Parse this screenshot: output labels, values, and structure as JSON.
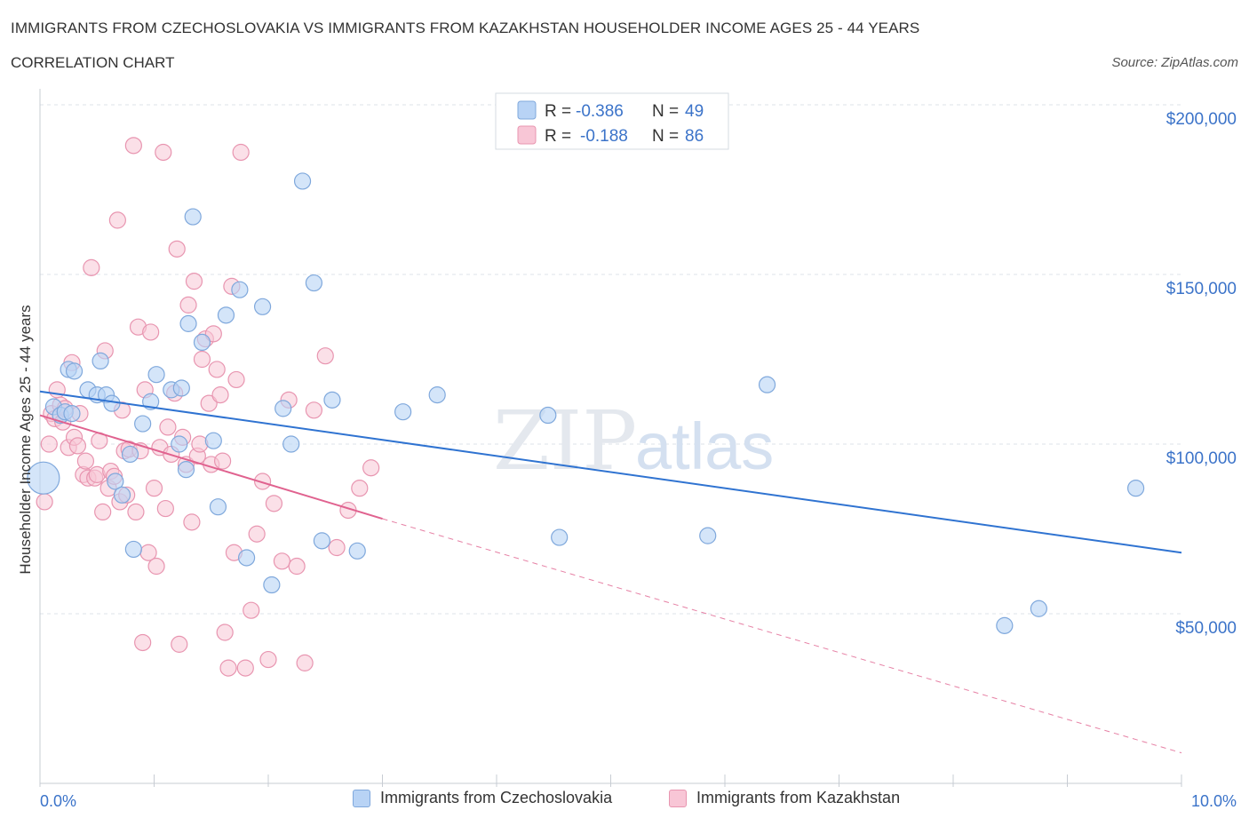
{
  "header": {
    "title": "IMMIGRANTS FROM CZECHOSLOVAKIA VS IMMIGRANTS FROM KAZAKHSTAN HOUSEHOLDER INCOME AGES 25 - 44 YEARS",
    "subtitle": "CORRELATION CHART",
    "source": "Source: ZipAtlas.com"
  },
  "watermark": {
    "zip": "ZIP",
    "atlas": "atlas"
  },
  "colors": {
    "blue_fill": "#b8d3f5",
    "blue_stroke": "#7fa8dc",
    "blue_line": "#2f73d1",
    "pink_fill": "#f8c6d6",
    "pink_stroke": "#e895b0",
    "pink_line": "#e0628f",
    "axis_label": "#3b73c9",
    "grid": "#dde3ea"
  },
  "legend_top": [
    {
      "r_label": "R = ",
      "r_value": "-0.386",
      "n_label": "N = ",
      "n_value": "49"
    },
    {
      "r_label": "R = ",
      "r_value": "-0.188",
      "n_label": "N = ",
      "n_value": "86"
    }
  ],
  "legend_bottom": [
    "Immigrants from Czechoslovakia",
    "Immigrants from Kazakhstan"
  ],
  "chart_data": {
    "type": "scatter",
    "title": "IMMIGRANTS FROM CZECHOSLOVAKIA VS IMMIGRANTS FROM KAZAKHSTAN HOUSEHOLDER INCOME AGES 25 - 44 YEARS",
    "xlabel": "",
    "ylabel": "Householder Income Ages 25 - 44 years",
    "xlim": [
      0,
      10
    ],
    "ylim": [
      0,
      200000
    ],
    "x_tick_labels": [
      "0.0%",
      "10.0%"
    ],
    "y_tick_labels": [
      "$50,000",
      "$100,000",
      "$150,000",
      "$200,000"
    ],
    "y_tick_values": [
      50000,
      100000,
      150000,
      200000
    ],
    "grid": true,
    "legend_position": "bottom",
    "series": [
      {
        "name": "Immigrants from Czechoslovakia",
        "color": "#b8d3f5",
        "trend": {
          "x": [
            0.0,
            10.0
          ],
          "y": [
            115500,
            68000
          ]
        },
        "points": [
          [
            0.03,
            90000
          ],
          [
            0.12,
            111000
          ],
          [
            0.18,
            108500
          ],
          [
            0.22,
            109500
          ],
          [
            0.25,
            122000
          ],
          [
            0.28,
            109000
          ],
          [
            0.3,
            121500
          ],
          [
            0.42,
            116000
          ],
          [
            0.5,
            114500
          ],
          [
            0.53,
            124500
          ],
          [
            0.58,
            114500
          ],
          [
            0.63,
            112000
          ],
          [
            0.66,
            89000
          ],
          [
            0.72,
            85000
          ],
          [
            0.79,
            97000
          ],
          [
            0.82,
            69000
          ],
          [
            0.9,
            106000
          ],
          [
            0.97,
            112500
          ],
          [
            1.02,
            120500
          ],
          [
            1.15,
            116000
          ],
          [
            1.22,
            100000
          ],
          [
            1.24,
            116500
          ],
          [
            1.28,
            92500
          ],
          [
            1.3,
            135500
          ],
          [
            1.34,
            167000
          ],
          [
            1.42,
            130000
          ],
          [
            1.52,
            101000
          ],
          [
            1.56,
            81500
          ],
          [
            1.63,
            138000
          ],
          [
            1.75,
            145500
          ],
          [
            1.81,
            66500
          ],
          [
            1.95,
            140500
          ],
          [
            2.03,
            58500
          ],
          [
            2.13,
            110500
          ],
          [
            2.2,
            100000
          ],
          [
            2.3,
            177500
          ],
          [
            2.4,
            147500
          ],
          [
            2.47,
            71500
          ],
          [
            2.56,
            113000
          ],
          [
            2.78,
            68500
          ],
          [
            3.18,
            109500
          ],
          [
            3.48,
            114500
          ],
          [
            4.45,
            108500
          ],
          [
            4.55,
            72500
          ],
          [
            5.85,
            73000
          ],
          [
            6.37,
            117500
          ],
          [
            8.45,
            46500
          ],
          [
            8.75,
            51500
          ],
          [
            9.6,
            87000
          ]
        ]
      },
      {
        "name": "Immigrants from Kazakhstan",
        "color": "#f8c6d6",
        "trend": {
          "x": [
            0.0,
            3.0
          ],
          "y": [
            108500,
            78000
          ]
        },
        "trend_extension": {
          "x": [
            3.0,
            10.0
          ],
          "y": [
            78000,
            9000
          ]
        },
        "points": [
          [
            0.04,
            83000
          ],
          [
            0.08,
            100000
          ],
          [
            0.1,
            109000
          ],
          [
            0.13,
            107500
          ],
          [
            0.15,
            116000
          ],
          [
            0.18,
            111500
          ],
          [
            0.2,
            106500
          ],
          [
            0.22,
            110500
          ],
          [
            0.25,
            99000
          ],
          [
            0.28,
            124000
          ],
          [
            0.3,
            102000
          ],
          [
            0.33,
            99500
          ],
          [
            0.35,
            109000
          ],
          [
            0.38,
            91000
          ],
          [
            0.4,
            95000
          ],
          [
            0.42,
            90000
          ],
          [
            0.45,
            152000
          ],
          [
            0.48,
            90000
          ],
          [
            0.5,
            91000
          ],
          [
            0.52,
            101000
          ],
          [
            0.55,
            80000
          ],
          [
            0.57,
            127500
          ],
          [
            0.6,
            87000
          ],
          [
            0.62,
            92000
          ],
          [
            0.65,
            90500
          ],
          [
            0.68,
            166000
          ],
          [
            0.7,
            83000
          ],
          [
            0.72,
            110000
          ],
          [
            0.74,
            98000
          ],
          [
            0.76,
            85000
          ],
          [
            0.78,
            98500
          ],
          [
            0.82,
            188000
          ],
          [
            0.84,
            80000
          ],
          [
            0.86,
            134500
          ],
          [
            0.88,
            98000
          ],
          [
            0.9,
            41500
          ],
          [
            0.92,
            116000
          ],
          [
            0.95,
            68000
          ],
          [
            0.97,
            133000
          ],
          [
            1.0,
            87000
          ],
          [
            1.02,
            64000
          ],
          [
            1.05,
            99000
          ],
          [
            1.08,
            186000
          ],
          [
            1.1,
            81000
          ],
          [
            1.12,
            105000
          ],
          [
            1.15,
            97000
          ],
          [
            1.18,
            115000
          ],
          [
            1.2,
            157500
          ],
          [
            1.22,
            41000
          ],
          [
            1.25,
            102000
          ],
          [
            1.28,
            94000
          ],
          [
            1.3,
            141000
          ],
          [
            1.33,
            77000
          ],
          [
            1.35,
            148000
          ],
          [
            1.38,
            96500
          ],
          [
            1.4,
            100000
          ],
          [
            1.42,
            125000
          ],
          [
            1.45,
            131000
          ],
          [
            1.48,
            112000
          ],
          [
            1.5,
            94000
          ],
          [
            1.52,
            132500
          ],
          [
            1.55,
            122000
          ],
          [
            1.58,
            114500
          ],
          [
            1.6,
            95000
          ],
          [
            1.62,
            44500
          ],
          [
            1.65,
            34000
          ],
          [
            1.68,
            146500
          ],
          [
            1.7,
            68000
          ],
          [
            1.72,
            119000
          ],
          [
            1.76,
            186000
          ],
          [
            1.8,
            34000
          ],
          [
            1.85,
            51000
          ],
          [
            1.9,
            73500
          ],
          [
            1.95,
            89000
          ],
          [
            2.0,
            36500
          ],
          [
            2.05,
            82500
          ],
          [
            2.12,
            65500
          ],
          [
            2.18,
            113000
          ],
          [
            2.25,
            64000
          ],
          [
            2.32,
            35500
          ],
          [
            2.4,
            110000
          ],
          [
            2.5,
            126000
          ],
          [
            2.6,
            69500
          ],
          [
            2.7,
            80500
          ],
          [
            2.8,
            87000
          ],
          [
            2.9,
            93000
          ]
        ]
      }
    ]
  }
}
